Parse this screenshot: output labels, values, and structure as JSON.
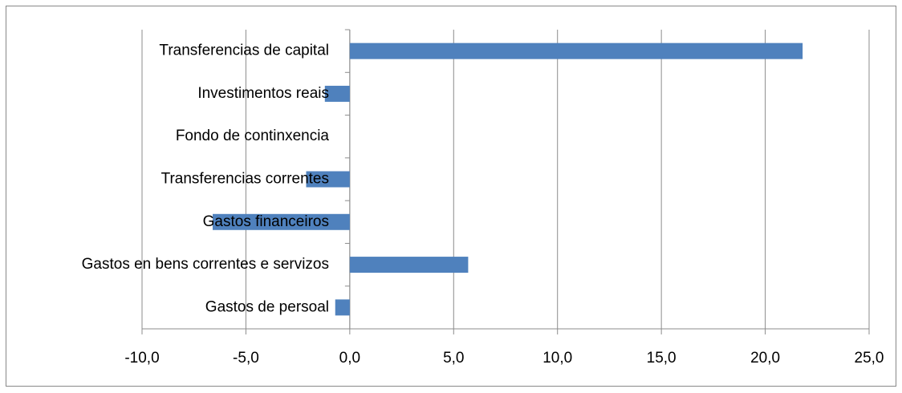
{
  "chart_data": {
    "type": "bar",
    "orientation": "horizontal",
    "categories": [
      "Gastos de persoal",
      "Gastos en bens correntes e servizos",
      "Gastos financeiros",
      "Transferencias correntes",
      "Fondo de continxencia",
      "Investimentos reais",
      "Transferencias de capital"
    ],
    "values": [
      -0.7,
      5.7,
      -6.6,
      -2.1,
      0,
      -1.2,
      21.8
    ],
    "color": "#4f81bd",
    "xlim": [
      -10,
      25
    ],
    "xticks": [
      {
        "value": -10,
        "label": "-10,0"
      },
      {
        "value": -5,
        "label": "-5,0"
      },
      {
        "value": 0,
        "label": "0,0"
      },
      {
        "value": 5,
        "label": "5,0"
      },
      {
        "value": 10,
        "label": "10,0"
      },
      {
        "value": 15,
        "label": "15,0"
      },
      {
        "value": 20,
        "label": "20,0"
      },
      {
        "value": 25,
        "label": "25,0"
      }
    ],
    "grid": true
  }
}
